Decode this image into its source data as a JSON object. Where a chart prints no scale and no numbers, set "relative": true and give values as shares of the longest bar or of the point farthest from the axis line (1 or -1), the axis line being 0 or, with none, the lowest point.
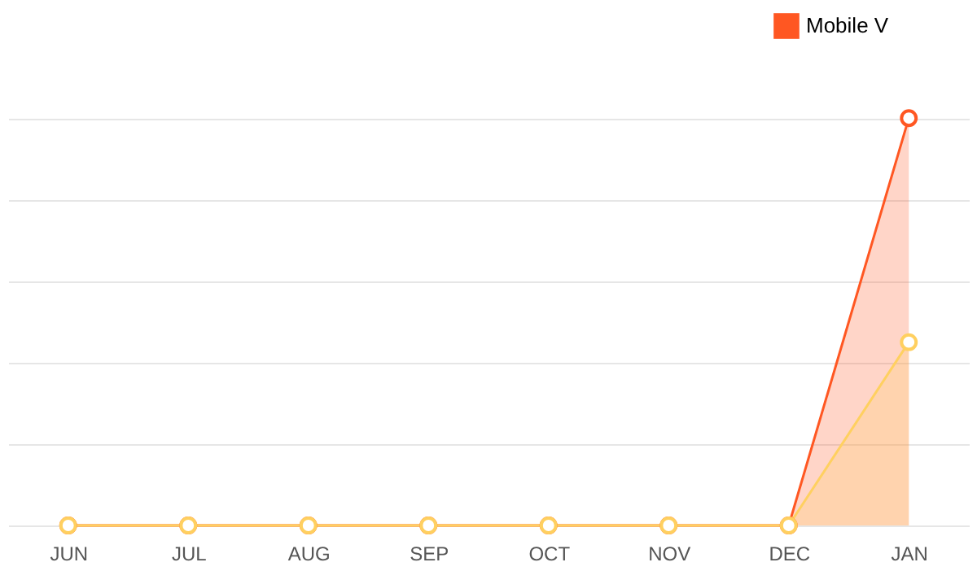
{
  "chart_data": {
    "type": "area",
    "relative": true,
    "categories": [
      "JUN",
      "JUL",
      "AUG",
      "SEP",
      "OCT",
      "NOV",
      "DEC",
      "JAN"
    ],
    "series": [
      {
        "name": "Mobile V",
        "color": "#ff5722",
        "values": [
          0,
          0,
          0,
          0,
          0,
          0,
          0,
          1
        ]
      },
      {
        "color": "#ffd060",
        "values": [
          0,
          0,
          0,
          0,
          0,
          0,
          0,
          0.45
        ]
      }
    ],
    "grid": "y",
    "legend": "top right",
    "marker": "circle"
  }
}
